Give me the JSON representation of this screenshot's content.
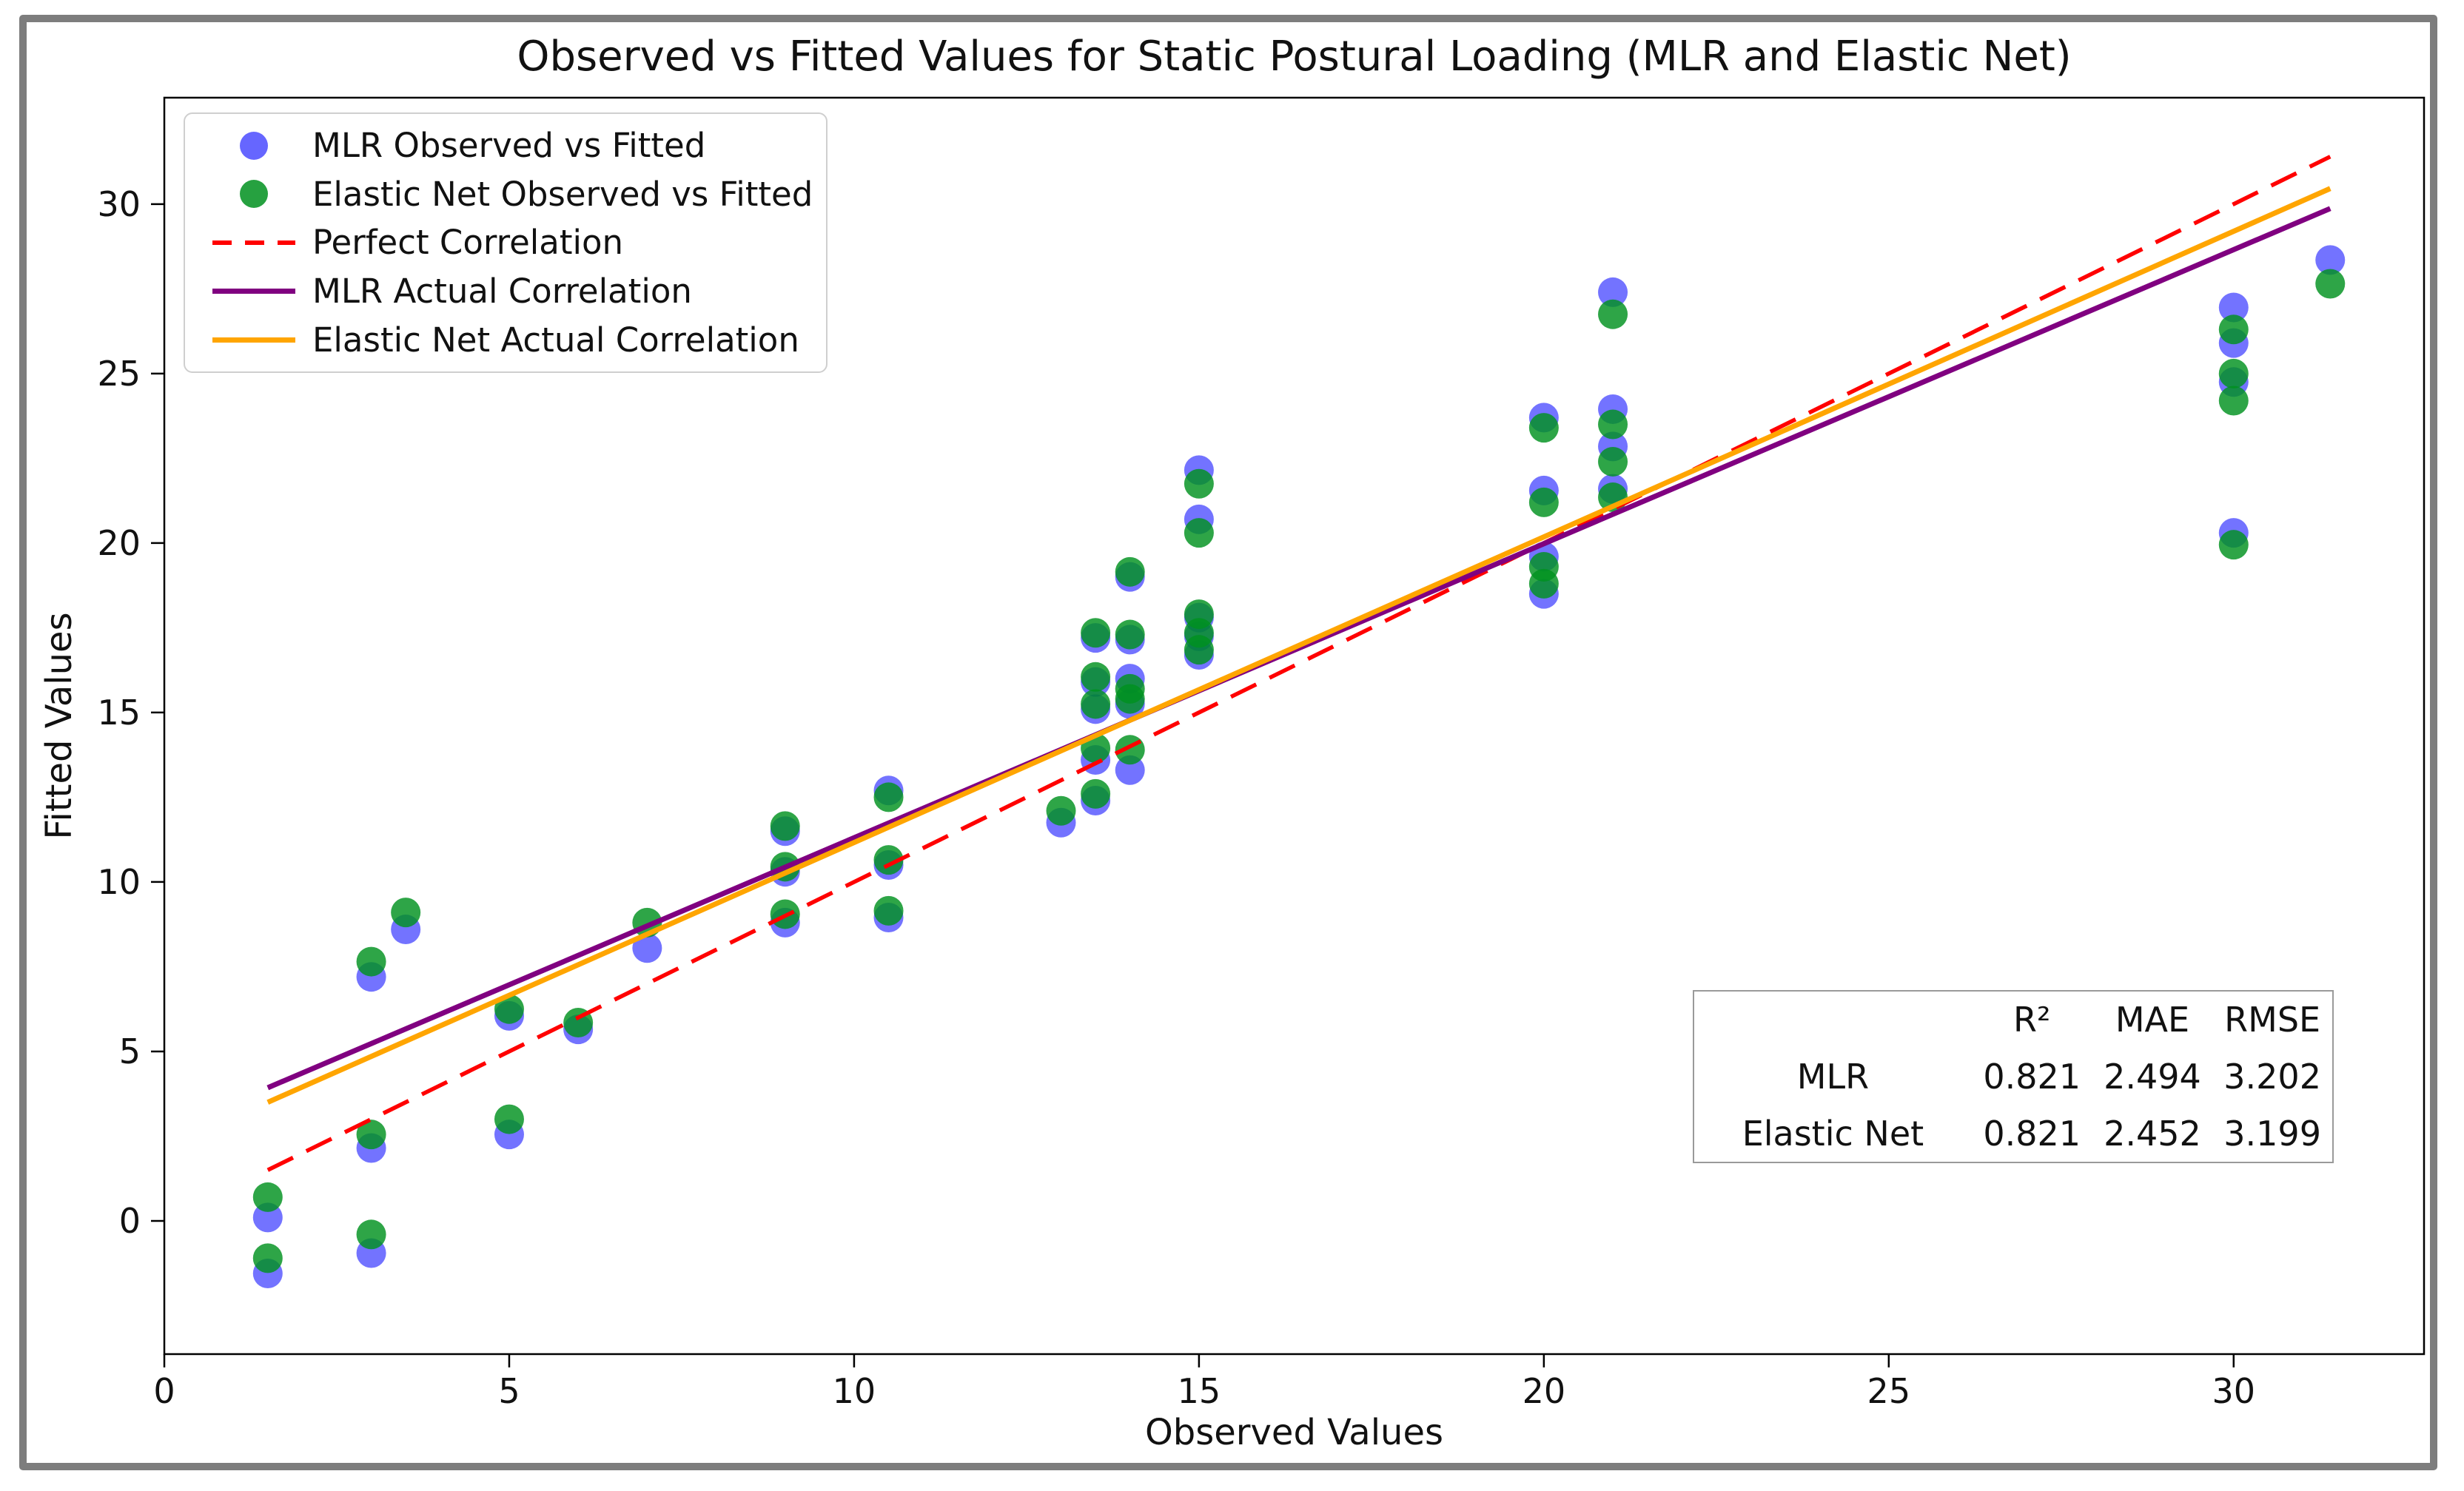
{
  "window": {
    "frame_border_color": "#7d7d7d",
    "background": "#ffffff"
  },
  "chart_data": {
    "type": "scatter",
    "title": "Observed vs Fitted Values for Static Postural Loading (MLR and Elastic Net)",
    "xlabel": "Observed Values",
    "ylabel": "Fitted Values",
    "xlim": [
      0,
      32.76
    ],
    "ylim": [
      -3.93,
      33.14
    ],
    "xticks": [
      0,
      5,
      10,
      15,
      20,
      25,
      30
    ],
    "yticks": [
      0,
      5,
      10,
      15,
      20,
      25,
      30
    ],
    "grid": false,
    "legend_position": "upper left",
    "axis_color": "#000000",
    "series": [
      {
        "name": "MLR Observed vs Fitted",
        "type": "scatter",
        "color": "rgba(0,0,255,0.55)",
        "points": [
          [
            1.5,
            0.1
          ],
          [
            1.5,
            -1.55
          ],
          [
            3,
            7.2
          ],
          [
            3,
            2.15
          ],
          [
            3,
            -0.95
          ],
          [
            3.5,
            8.6
          ],
          [
            5,
            6.05
          ],
          [
            5,
            2.55
          ],
          [
            6,
            5.65
          ],
          [
            7,
            8.05
          ],
          [
            9,
            11.5
          ],
          [
            9,
            10.3
          ],
          [
            9,
            8.8
          ],
          [
            10.5,
            12.7
          ],
          [
            10.5,
            10.5
          ],
          [
            10.5,
            8.95
          ],
          [
            13,
            11.75
          ],
          [
            13.5,
            17.2
          ],
          [
            13.5,
            15.9
          ],
          [
            13.5,
            15.1
          ],
          [
            13.5,
            13.6
          ],
          [
            13.5,
            12.4
          ],
          [
            14,
            19.0
          ],
          [
            14,
            17.15
          ],
          [
            14,
            16.0
          ],
          [
            14,
            15.25
          ],
          [
            14,
            13.3
          ],
          [
            15,
            22.15
          ],
          [
            15,
            20.7
          ],
          [
            15,
            17.8
          ],
          [
            15,
            17.25
          ],
          [
            15,
            16.7
          ],
          [
            20,
            23.7
          ],
          [
            20,
            21.55
          ],
          [
            20,
            19.6
          ],
          [
            20,
            18.5
          ],
          [
            21,
            27.4
          ],
          [
            21,
            23.95
          ],
          [
            21,
            22.85
          ],
          [
            21,
            21.6
          ],
          [
            30,
            26.95
          ],
          [
            30,
            25.9
          ],
          [
            30,
            24.75
          ],
          [
            30,
            20.3
          ],
          [
            31.4,
            28.35
          ]
        ]
      },
      {
        "name": "Elastic Net Observed vs Fitted",
        "type": "scatter",
        "color": "rgba(0,145,30,0.82)",
        "points": [
          [
            1.5,
            0.7
          ],
          [
            1.5,
            -1.1
          ],
          [
            3,
            7.65
          ],
          [
            3,
            2.55
          ],
          [
            3,
            -0.4
          ],
          [
            3.5,
            9.1
          ],
          [
            5,
            6.25
          ],
          [
            5,
            3.0
          ],
          [
            6,
            5.85
          ],
          [
            7,
            8.8
          ],
          [
            9,
            11.65
          ],
          [
            9,
            10.45
          ],
          [
            9,
            9.05
          ],
          [
            10.5,
            12.5
          ],
          [
            10.5,
            10.65
          ],
          [
            10.5,
            9.15
          ],
          [
            13,
            12.1
          ],
          [
            13.5,
            17.35
          ],
          [
            13.5,
            16.05
          ],
          [
            13.5,
            15.25
          ],
          [
            13.5,
            13.95
          ],
          [
            13.5,
            12.6
          ],
          [
            14,
            19.15
          ],
          [
            14,
            17.3
          ],
          [
            14,
            15.7
          ],
          [
            14,
            15.4
          ],
          [
            14,
            13.9
          ],
          [
            15,
            21.75
          ],
          [
            15,
            20.3
          ],
          [
            15,
            17.9
          ],
          [
            15,
            17.35
          ],
          [
            15,
            16.85
          ],
          [
            20,
            23.4
          ],
          [
            20,
            21.2
          ],
          [
            20,
            19.3
          ],
          [
            20,
            18.8
          ],
          [
            21,
            26.75
          ],
          [
            21,
            23.5
          ],
          [
            21,
            22.4
          ],
          [
            21,
            21.35
          ],
          [
            30,
            26.3
          ],
          [
            30,
            25.0
          ],
          [
            30,
            24.2
          ],
          [
            30,
            19.95
          ],
          [
            31.4,
            27.65
          ]
        ]
      }
    ],
    "lines": [
      {
        "name": "Perfect Correlation",
        "color": "#ff0000",
        "style": "dashed",
        "dash": "38 20",
        "width": 5.5,
        "x": [
          1.5,
          31.4
        ],
        "y": [
          1.5,
          31.4
        ]
      },
      {
        "name": "MLR Actual Correlation",
        "color": "#800080",
        "style": "solid",
        "dash": "",
        "width": 7,
        "x": [
          1.5,
          31.4
        ],
        "y": [
          3.93,
          29.87
        ]
      },
      {
        "name": "Elastic Net Actual Correlation",
        "color": "#ffa500",
        "style": "solid",
        "dash": "",
        "width": 7,
        "x": [
          1.5,
          31.4
        ],
        "y": [
          3.5,
          30.46
        ]
      }
    ],
    "stats_table": {
      "headers": [
        "",
        "R²",
        "MAE",
        "RMSE"
      ],
      "rows": [
        [
          "MLR",
          "0.821",
          "2.494",
          "3.202"
        ],
        [
          "Elastic Net",
          "0.821",
          "2.452",
          "3.199"
        ]
      ]
    }
  },
  "legend": {
    "items": [
      {
        "label": "MLR Observed vs Fitted",
        "marker": "dot",
        "color": "rgba(0,0,255,0.6)"
      },
      {
        "label": "Elastic Net Observed vs Fitted",
        "marker": "dot",
        "color": "rgba(0,145,30,0.85)"
      },
      {
        "label": "Perfect Correlation",
        "marker": "dashed",
        "color": "#ff0000"
      },
      {
        "label": "MLR Actual Correlation",
        "marker": "line",
        "color": "#800080"
      },
      {
        "label": "Elastic Net Actual Correlation",
        "marker": "line",
        "color": "#ffa500"
      }
    ]
  }
}
